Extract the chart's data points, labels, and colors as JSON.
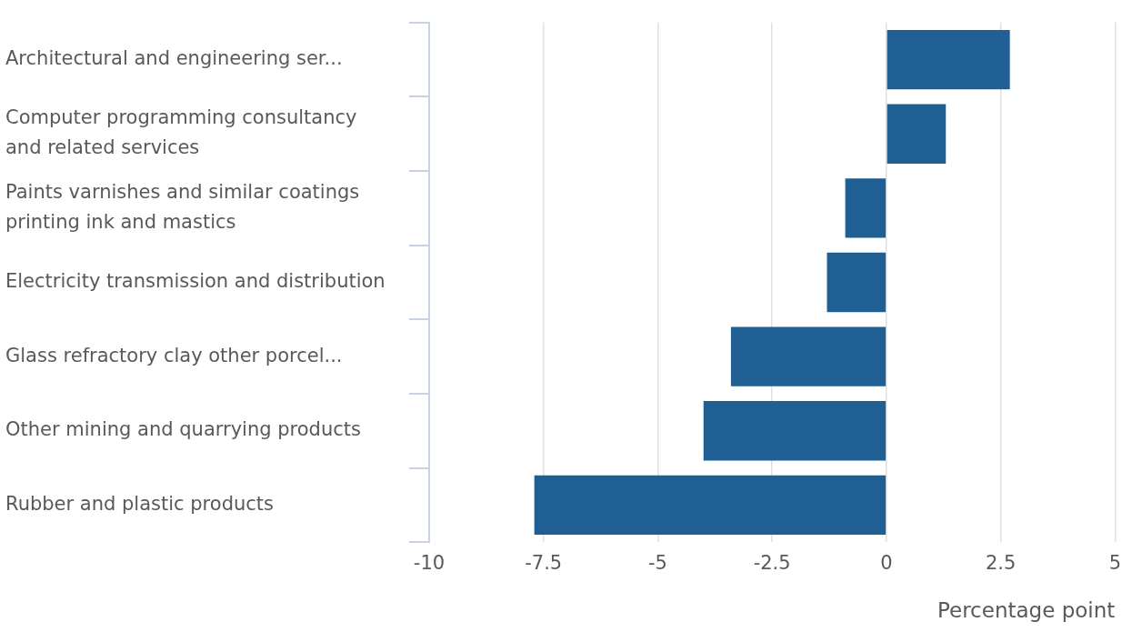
{
  "chart_data": {
    "type": "bar",
    "orientation": "horizontal",
    "categories": [
      "Architectural and engineering ser...",
      "Computer programming consultancy and related services",
      "Paints varnishes and similar coatings printing ink and mastics",
      "Electricity transmission and distribution",
      "Glass refractory clay other porcel...",
      "Other mining and quarrying products",
      "Rubber and plastic products"
    ],
    "values": [
      2.7,
      1.3,
      -0.9,
      -1.3,
      -3.4,
      -4.0,
      -7.7
    ],
    "color": "#1f5f94",
    "xlabel": "Percentage point",
    "xlim": [
      -10,
      5
    ],
    "xticks": [
      -10,
      -7.5,
      -5,
      -2.5,
      0,
      2.5,
      5
    ],
    "grid": "x",
    "legend": false
  }
}
